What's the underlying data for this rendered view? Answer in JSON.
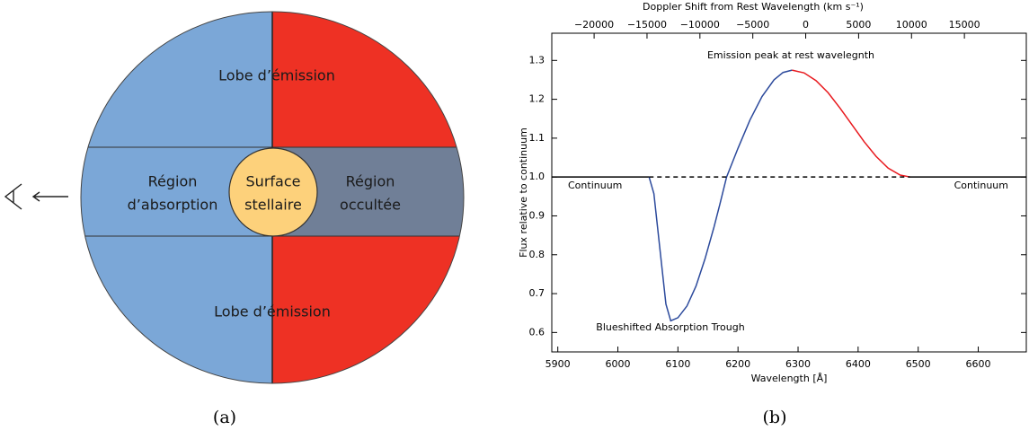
{
  "diagram": {
    "caption": "(a)",
    "top_lobe": "Lobe d’émission",
    "absorption": [
      "Région",
      "d’absorption"
    ],
    "surface": [
      "Surface",
      "stellaire"
    ],
    "occulted": [
      "Région",
      "occultée"
    ],
    "bottom_lobe": "Lobe d’émission"
  },
  "chart_data": {
    "type": "line",
    "caption": "(b)",
    "xlabel": "Wavelength [Å]",
    "ylabel": "Flux relative to continuum",
    "x2label": "Doppler Shift from Rest Wavelength (km s⁻¹)",
    "xlim": [
      5890,
      6680
    ],
    "xticks": [
      5900,
      6000,
      6100,
      6200,
      6300,
      6400,
      6500,
      6600
    ],
    "x2lim": [
      -24000,
      20850
    ],
    "x2ticks": [
      {
        "value": -20000,
        "label": "−20000"
      },
      {
        "value": -15000,
        "label": "−15000"
      },
      {
        "value": -10000,
        "label": "−10000"
      },
      {
        "value": -5000,
        "label": "−5000"
      },
      0,
      5000,
      10000,
      15000
    ],
    "ylim": [
      0.55,
      1.37
    ],
    "yticks": [
      0.6,
      0.7,
      0.8,
      0.9,
      {
        "value": 1,
        "label": "1.0"
      },
      1.1,
      1.2,
      1.3
    ],
    "series": [
      {
        "color": "#000000",
        "x": [
          5890,
          6052
        ],
        "values": [
          1,
          1
        ]
      },
      {
        "color": "#2c4a9c",
        "x": [
          6052,
          6060,
          6070,
          6080,
          6088,
          6100,
          6115,
          6130,
          6145,
          6160,
          6170,
          6181,
          6200,
          6220,
          6240,
          6260,
          6275,
          6290
        ],
        "values": [
          1,
          0.957,
          0.815,
          0.673,
          0.63,
          0.638,
          0.668,
          0.719,
          0.789,
          0.871,
          0.931,
          1,
          1.074,
          1.147,
          1.207,
          1.25,
          1.269,
          1.275
        ]
      },
      {
        "color": "#e8191e",
        "x": [
          6290,
          6310,
          6330,
          6350,
          6370,
          6390,
          6410,
          6430,
          6450,
          6470,
          6487
        ],
        "values": [
          1.275,
          1.268,
          1.248,
          1.217,
          1.177,
          1.134,
          1.091,
          1.053,
          1.023,
          1.005,
          1
        ]
      },
      {
        "color": "#000000",
        "x": [
          6487,
          6680
        ],
        "values": [
          1,
          1
        ]
      },
      {
        "color": "#000000",
        "dash": true,
        "x": [
          6052,
          6487
        ],
        "values": [
          1,
          1
        ]
      }
    ],
    "annotations": [
      "Emission peak at rest wavelegnth",
      "Continuum",
      "Continuum",
      "Blueshifted Absorption Trough"
    ]
  }
}
